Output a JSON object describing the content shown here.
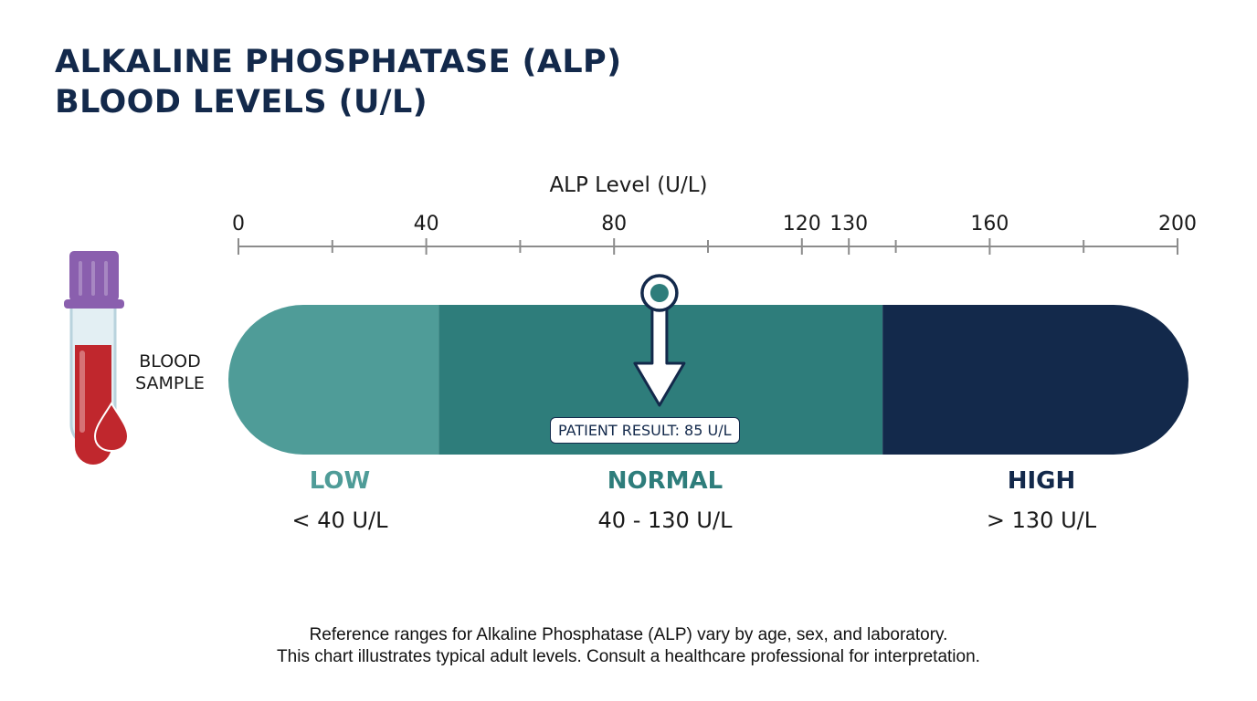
{
  "title_lines": [
    "ALKALINE PHOSPHATASE (ALP)",
    "BLOOD LEVELS (U/L)"
  ],
  "sample_label_lines": [
    "BLOOD",
    "SAMPLE"
  ],
  "colors": {
    "title": "#13294b",
    "low": "#4f9c98",
    "normal": "#2e7d7b",
    "high": "#13294b",
    "blood": "#c0272d",
    "tube_cap": "#8a5fae"
  },
  "chart_data": {
    "type": "bar",
    "orientation": "horizontal-range-scale",
    "xlabel": "ALP Level (U/L)",
    "xlim": [
      0,
      200
    ],
    "ticks": [
      0,
      40,
      80,
      120,
      130,
      160,
      200
    ],
    "minor_ticks": [
      20,
      60,
      100,
      140,
      180
    ],
    "ranges": [
      {
        "name": "LOW",
        "range_label": "< 40 U/L",
        "from": 0,
        "to": 40
      },
      {
        "name": "NORMAL",
        "range_label": "40 - 130 U/L",
        "from": 40,
        "to": 130
      },
      {
        "name": "HIGH",
        "range_label": "> 130 U/L",
        "from": 130,
        "to": 200
      }
    ],
    "marker": {
      "label": "PATIENT RESULT: 85 U/L",
      "value": 85
    }
  },
  "footnote_lines": [
    "Reference ranges for Alkaline Phosphatase (ALP) vary by age, sex, and laboratory.",
    "This chart illustrates typical adult levels. Consult a healthcare professional for interpretation."
  ]
}
